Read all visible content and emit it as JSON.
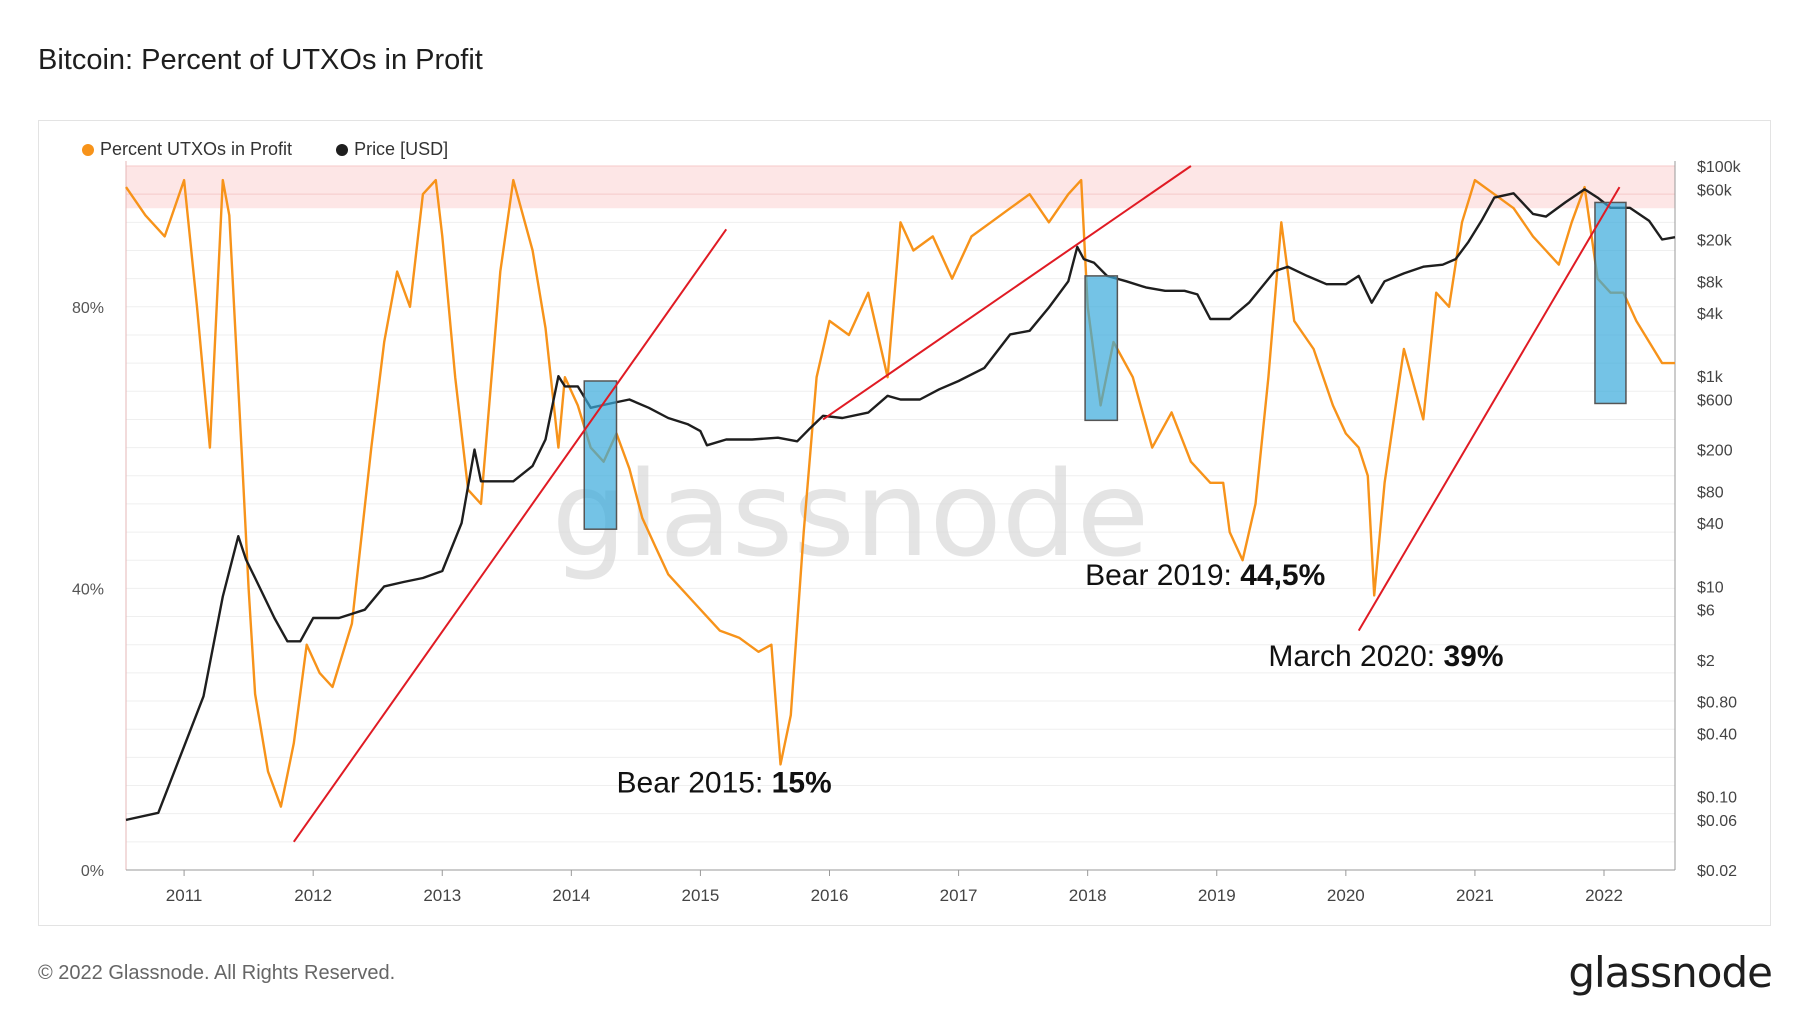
{
  "title": "Bitcoin: Percent of UTXOs in Profit",
  "legend": {
    "profit_label": "Percent UTXOs in Profit",
    "price_label": "Price [USD]"
  },
  "watermark": "glassnode",
  "footer": {
    "copyright": "© 2022 Glassnode. All Rights Reserved.",
    "brand": "glassnode"
  },
  "colors": {
    "profit": "#f7931a",
    "price": "#1e1e1e",
    "trend": "#e01b24",
    "highlight": "#39a9dc",
    "zone": "#fde6e6"
  },
  "chart_data": {
    "type": "line",
    "title": "Bitcoin: Percent of UTXOs in Profit",
    "x_ticks": [
      "2011",
      "2012",
      "2013",
      "2014",
      "2015",
      "2016",
      "2017",
      "2018",
      "2019",
      "2020",
      "2021",
      "2022"
    ],
    "x_range": [
      2010.55,
      2022.55
    ],
    "left_axis": {
      "ticks": [
        "0%",
        "40%",
        "80%"
      ],
      "tick_values": [
        0,
        40,
        80
      ],
      "ylim": [
        0,
        100
      ]
    },
    "right_axis": {
      "scale": "log",
      "ticks": [
        "$100k",
        "$60k",
        "$20k",
        "$8k",
        "$4k",
        "$1k",
        "$600",
        "$200",
        "$80",
        "$40",
        "$10",
        "$6",
        "$2",
        "$0.80",
        "$0.40",
        "$0.10",
        "$0.06",
        "$0.02"
      ],
      "tick_values": [
        100000,
        60000,
        20000,
        8000,
        4000,
        1000,
        600,
        200,
        80,
        40,
        10,
        6,
        2,
        0.8,
        0.4,
        0.1,
        0.06,
        0.02
      ],
      "ylim": [
        0.02,
        100000
      ]
    },
    "high_profit_zone": [
      94,
      100
    ],
    "series": [
      {
        "name": "Percent UTXOs in Profit",
        "axis": "left",
        "x": [
          2010.55,
          2010.7,
          2010.85,
          2011.0,
          2011.1,
          2011.2,
          2011.3,
          2011.35,
          2011.45,
          2011.5,
          2011.55,
          2011.65,
          2011.75,
          2011.85,
          2011.95,
          2012.05,
          2012.15,
          2012.3,
          2012.45,
          2012.55,
          2012.65,
          2012.75,
          2012.85,
          2012.95,
          2013.0,
          2013.1,
          2013.2,
          2013.3,
          2013.45,
          2013.55,
          2013.7,
          2013.8,
          2013.9,
          2013.95,
          2014.05,
          2014.15,
          2014.25,
          2014.35,
          2014.45,
          2014.55,
          2014.65,
          2014.75,
          2014.85,
          2014.95,
          2015.05,
          2015.15,
          2015.3,
          2015.45,
          2015.55,
          2015.62,
          2015.7,
          2015.8,
          2015.9,
          2016.0,
          2016.15,
          2016.3,
          2016.45,
          2016.55,
          2016.65,
          2016.8,
          2016.95,
          2017.1,
          2017.25,
          2017.4,
          2017.55,
          2017.7,
          2017.85,
          2017.95,
          2018.0,
          2018.1,
          2018.2,
          2018.35,
          2018.5,
          2018.65,
          2018.8,
          2018.95,
          2019.05,
          2019.1,
          2019.2,
          2019.3,
          2019.4,
          2019.5,
          2019.6,
          2019.75,
          2019.9,
          2020.0,
          2020.1,
          2020.17,
          2020.22,
          2020.3,
          2020.45,
          2020.6,
          2020.7,
          2020.8,
          2020.9,
          2021.0,
          2021.15,
          2021.3,
          2021.45,
          2021.55,
          2021.65,
          2021.75,
          2021.85,
          2021.95,
          2022.05,
          2022.15,
          2022.25,
          2022.35,
          2022.45,
          2022.55
        ],
        "y": [
          97,
          93,
          90,
          98,
          80,
          60,
          98,
          93,
          58,
          40,
          25,
          14,
          9,
          18,
          32,
          28,
          26,
          35,
          60,
          75,
          85,
          80,
          96,
          98,
          90,
          70,
          54,
          52,
          85,
          98,
          88,
          77,
          60,
          70,
          66,
          60,
          58,
          62,
          57,
          50,
          46,
          42,
          40,
          38,
          36,
          34,
          33,
          31,
          32,
          15,
          22,
          48,
          70,
          78,
          76,
          82,
          70,
          92,
          88,
          90,
          84,
          90,
          92,
          94,
          96,
          92,
          96,
          98,
          80,
          66,
          75,
          70,
          60,
          65,
          58,
          55,
          55,
          48,
          44,
          52,
          70,
          92,
          78,
          74,
          66,
          62,
          60,
          56,
          39,
          55,
          74,
          64,
          82,
          80,
          92,
          98,
          96,
          94,
          90,
          88,
          86,
          92,
          97,
          84,
          82,
          82,
          78,
          75,
          72,
          72
        ]
      },
      {
        "name": "Price [USD]",
        "axis": "right",
        "x": [
          2010.55,
          2010.8,
          2011.0,
          2011.15,
          2011.3,
          2011.42,
          2011.48,
          2011.55,
          2011.7,
          2011.8,
          2011.9,
          2012.0,
          2012.2,
          2012.4,
          2012.55,
          2012.7,
          2012.85,
          2013.0,
          2013.15,
          2013.25,
          2013.3,
          2013.4,
          2013.55,
          2013.7,
          2013.8,
          2013.9,
          2013.95,
          2014.05,
          2014.15,
          2014.3,
          2014.45,
          2014.6,
          2014.75,
          2014.9,
          2015.0,
          2015.05,
          2015.2,
          2015.4,
          2015.6,
          2015.75,
          2015.85,
          2015.95,
          2016.1,
          2016.3,
          2016.45,
          2016.55,
          2016.7,
          2016.85,
          2017.0,
          2017.2,
          2017.4,
          2017.55,
          2017.7,
          2017.85,
          2017.92,
          2017.97,
          2018.05,
          2018.15,
          2018.3,
          2018.45,
          2018.6,
          2018.75,
          2018.85,
          2018.95,
          2019.1,
          2019.25,
          2019.45,
          2019.55,
          2019.7,
          2019.85,
          2020.0,
          2020.1,
          2020.2,
          2020.3,
          2020.45,
          2020.6,
          2020.75,
          2020.85,
          2020.95,
          2021.05,
          2021.15,
          2021.3,
          2021.45,
          2021.55,
          2021.7,
          2021.85,
          2021.95,
          2022.05,
          2022.2,
          2022.35,
          2022.45,
          2022.55
        ],
        "y": [
          0.06,
          0.07,
          0.3,
          0.9,
          8,
          30,
          18,
          12,
          5,
          3,
          3,
          5,
          5,
          6,
          10,
          11,
          12,
          14,
          40,
          200,
          100,
          100,
          100,
          140,
          250,
          1000,
          800,
          800,
          500,
          550,
          600,
          500,
          400,
          350,
          300,
          220,
          250,
          250,
          260,
          240,
          320,
          420,
          400,
          450,
          650,
          600,
          600,
          750,
          900,
          1200,
          2500,
          2700,
          4500,
          8000,
          17000,
          13000,
          12000,
          9000,
          8000,
          7000,
          6500,
          6500,
          6000,
          3500,
          3500,
          5000,
          10000,
          11000,
          9000,
          7500,
          7500,
          9000,
          5000,
          8000,
          9500,
          11000,
          11500,
          13000,
          19000,
          30000,
          50000,
          55000,
          35000,
          33000,
          45000,
          60000,
          50000,
          40000,
          40000,
          30000,
          20000,
          21000
        ]
      }
    ],
    "highlight_boxes": [
      {
        "x_range": [
          2014.1,
          2014.35
        ],
        "price_range": [
          35,
          900
        ]
      },
      {
        "x_range": [
          2017.98,
          2018.23
        ],
        "price_range": [
          380,
          9000
        ]
      },
      {
        "x_range": [
          2021.93,
          2022.17
        ],
        "price_range": [
          550,
          45000
        ]
      }
    ],
    "trend_lines": [
      {
        "from": [
          2011.85,
          4
        ],
        "to": [
          2015.2,
          91
        ]
      },
      {
        "from": [
          2015.95,
          64
        ],
        "to": [
          2018.8,
          100
        ]
      },
      {
        "from": [
          2020.1,
          34
        ],
        "to": [
          2022.12,
          97
        ]
      }
    ],
    "annotations": [
      {
        "prefix": "Bear 2015: ",
        "value": "15%",
        "x": 2014.35,
        "y": 11
      },
      {
        "prefix": "Bear 2019: ",
        "value": "44,5%",
        "x": 2017.98,
        "y": 40.5
      },
      {
        "prefix": "March 2020: ",
        "value": "39%",
        "x": 2019.4,
        "y": 29
      }
    ]
  }
}
